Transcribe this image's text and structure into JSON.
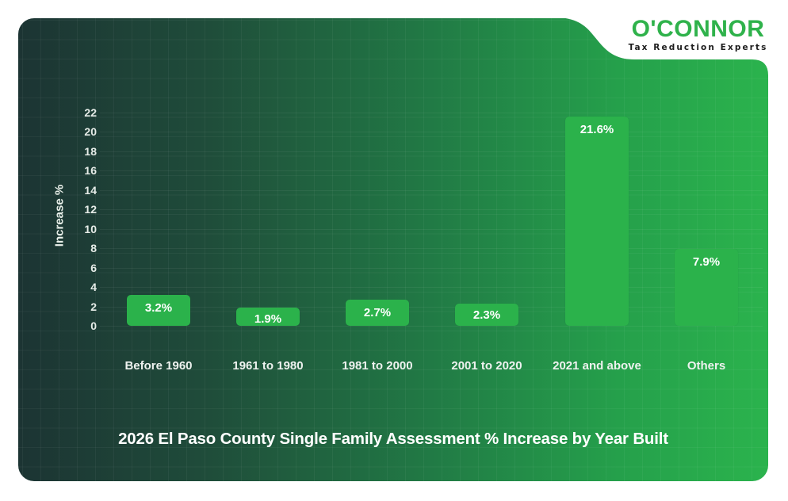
{
  "brand": {
    "name": "O'CONNOR",
    "tagline": "Tax Reduction Experts",
    "colors": {
      "accent": "#2fb24b",
      "dark": "#1c3433",
      "bar": "#2bb24b"
    }
  },
  "chart_data": {
    "type": "bar",
    "title": "2026 El Paso County Single Family Assessment % Increase by Year Built",
    "xlabel": "",
    "ylabel": "Increase %",
    "ylim": [
      0,
      22
    ],
    "yticks": [
      0,
      2,
      4,
      6,
      8,
      10,
      12,
      14,
      16,
      18,
      20,
      22
    ],
    "grid": true,
    "legend": null,
    "categories": [
      "Before 1960",
      "1961 to 1980",
      "1981 to 2000",
      "2001 to 2020",
      "2021 and above",
      "Others"
    ],
    "values": [
      3.2,
      1.9,
      2.7,
      2.3,
      21.6,
      7.9
    ],
    "data_labels": [
      "3.2%",
      "1.9%",
      "2.7%",
      "2.3%",
      "21.6%",
      "7.9%"
    ]
  },
  "axis": {
    "ticks": [
      "0",
      "2",
      "4",
      "6",
      "8",
      "10",
      "12",
      "14",
      "16",
      "18",
      "20",
      "22"
    ]
  }
}
